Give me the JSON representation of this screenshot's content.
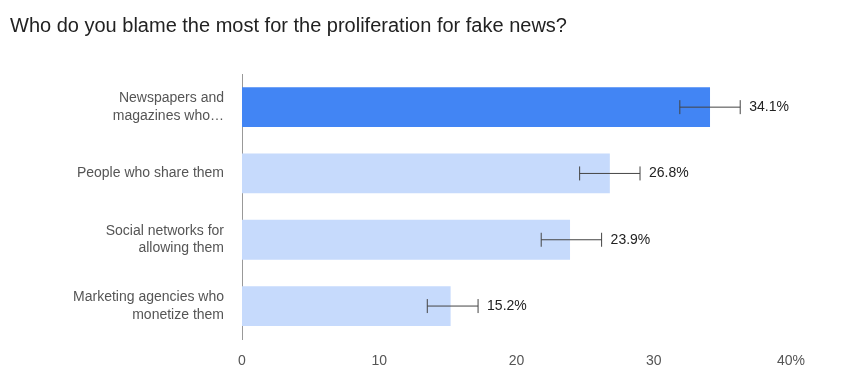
{
  "chart_data": {
    "type": "bar",
    "orientation": "horizontal",
    "title": "Who do you blame the most for the proliferation for fake news?",
    "categories": [
      "Newspapers and magazines who…",
      "People who share them",
      "Social networks for allowing them",
      "Marketing agencies who monetize them"
    ],
    "values": [
      34.1,
      26.8,
      23.9,
      15.2
    ],
    "value_labels": [
      "34.1%",
      "26.8%",
      "23.9%",
      "15.2%"
    ],
    "data_labels": true,
    "error_low": [
      31.9,
      24.6,
      21.8,
      13.5
    ],
    "error_high": [
      36.3,
      29.0,
      26.2,
      17.2
    ],
    "colors": [
      "#4285f4",
      "#c6dafc",
      "#c6dafc",
      "#c6dafc"
    ],
    "xlim": [
      0,
      40
    ],
    "xticks": [
      0,
      10,
      20,
      30,
      {
        "value": 40,
        "label": "40%"
      }
    ],
    "grid": false
  }
}
